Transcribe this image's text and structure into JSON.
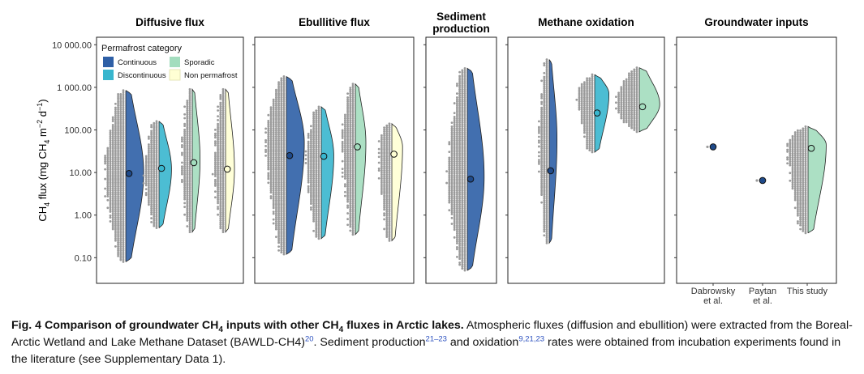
{
  "chart_data": {
    "type": "violin",
    "y_axis": {
      "label_main": "CH",
      "label_sub": "4",
      "label_rest": " flux (mg CH",
      "label_sub2": "4",
      "label_tail": " m",
      "label_sup1": "−2",
      "label_mid": " d",
      "label_sup2": "−1",
      "label_close": ")",
      "scale": "log",
      "range": [
        0.025,
        15000
      ],
      "ticks": [
        0.1,
        1,
        10,
        100,
        1000,
        10000
      ],
      "tick_labels": [
        "0.10",
        "1.00",
        "10.00",
        "100.00",
        "1 000.00",
        "10 000.00"
      ]
    },
    "legend": {
      "title": "Permafrost category",
      "placement": "top-left of first panel",
      "items": [
        {
          "label": "Continuous",
          "color": "#2E5FA6"
        },
        {
          "label": "Sporadic",
          "color": "#A3DDBE"
        },
        {
          "label": "Discontinuous",
          "color": "#38B6CE"
        },
        {
          "label": "Non permafrost",
          "color": "#FFFFD4"
        }
      ]
    },
    "panels": [
      {
        "title": "Diffusive flux",
        "violins": [
          {
            "category": "Continuous",
            "color": "#2E5FA6",
            "min": 0.08,
            "max": 850,
            "mean": 9.5,
            "peak": 10,
            "width": 0.85
          },
          {
            "category": "Discontinuous",
            "color": "#38B6CE",
            "min": 0.5,
            "max": 160,
            "mean": 12.5,
            "peak": 12,
            "width": 0.7
          },
          {
            "category": "Sporadic",
            "color": "#A3DDBE",
            "min": 0.4,
            "max": 900,
            "mean": 17,
            "peak": 20,
            "width": 0.6
          },
          {
            "category": "Non permafrost",
            "color": "#FFFFD4",
            "min": 0.4,
            "max": 900,
            "mean": 12,
            "peak": 12,
            "width": 0.55
          }
        ]
      },
      {
        "title": "Ebullitive flux",
        "violins": [
          {
            "category": "Continuous",
            "color": "#2E5FA6",
            "min": 0.12,
            "max": 1800,
            "mean": 25,
            "peak": 50,
            "width": 0.85
          },
          {
            "category": "Discontinuous",
            "color": "#38B6CE",
            "min": 0.28,
            "max": 350,
            "mean": 24,
            "peak": 25,
            "width": 0.7
          },
          {
            "category": "Sporadic",
            "color": "#A3DDBE",
            "min": 0.35,
            "max": 1200,
            "mean": 40,
            "peak": 50,
            "width": 0.65
          },
          {
            "category": "Non permafrost",
            "color": "#FFFFD4",
            "min": 0.25,
            "max": 140,
            "mean": 27,
            "peak": 40,
            "width": 0.6
          }
        ]
      },
      {
        "title": "Sediment production",
        "title_lines": [
          "Sediment",
          "production"
        ],
        "violins": [
          {
            "category": "Continuous",
            "color": "#2E5FA6",
            "min": 0.05,
            "max": 2800,
            "mean": 7,
            "peak": 8,
            "width": 0.8
          }
        ]
      },
      {
        "title": "Methane oxidation",
        "violins": [
          {
            "category": "Continuous",
            "color": "#2E5FA6",
            "min": 0.22,
            "max": 4500,
            "mean": 11,
            "peak": 60,
            "width": 0.6
          },
          {
            "category": "Discontinuous",
            "color": "#38B6CE",
            "min": 30,
            "max": 2000,
            "mean": 250,
            "peak": 700,
            "width": 0.8
          },
          {
            "category": "Sporadic",
            "color": "#A3DDBE",
            "min": 90,
            "max": 2900,
            "mean": 350,
            "peak": 400,
            "width": 0.9
          }
        ]
      },
      {
        "title": "Groundwater inputs",
        "categories": [
          "Dabrowsky\net al.",
          "Paytan\net al.",
          "This study"
        ],
        "points": [
          {
            "study": "Dabrowsky et al.",
            "value": 40,
            "color": "#1F4A8A"
          },
          {
            "study": "Paytan et al.",
            "value": 6.5,
            "color": "#1F4A8A"
          }
        ],
        "violins": [
          {
            "category": "This study",
            "color": "#A3DDBE",
            "min": 0.38,
            "max": 120,
            "mean": 37,
            "peak": 45,
            "width": 0.8
          }
        ]
      }
    ]
  },
  "caption": {
    "label": "Fig. 4 Comparison of groundwater CH",
    "label_sub": "4",
    "label_mid": " inputs with other CH",
    "label_sub2": "4",
    "label_end": " fluxes in Arctic lakes.",
    "text1": " Atmospheric fluxes (diffusion and ebullition) were extracted from the Boreal-Arctic Wetland and Lake Methane Dataset (BAWLD-CH4)",
    "ref1": "20",
    "text2": ". Sediment production",
    "ref2": "21–23",
    "text3": " and oxidation",
    "ref3": "9,21,23",
    "text4": " rates were obtained from incubation experiments found in the literature (see Supplementary Data 1)."
  }
}
